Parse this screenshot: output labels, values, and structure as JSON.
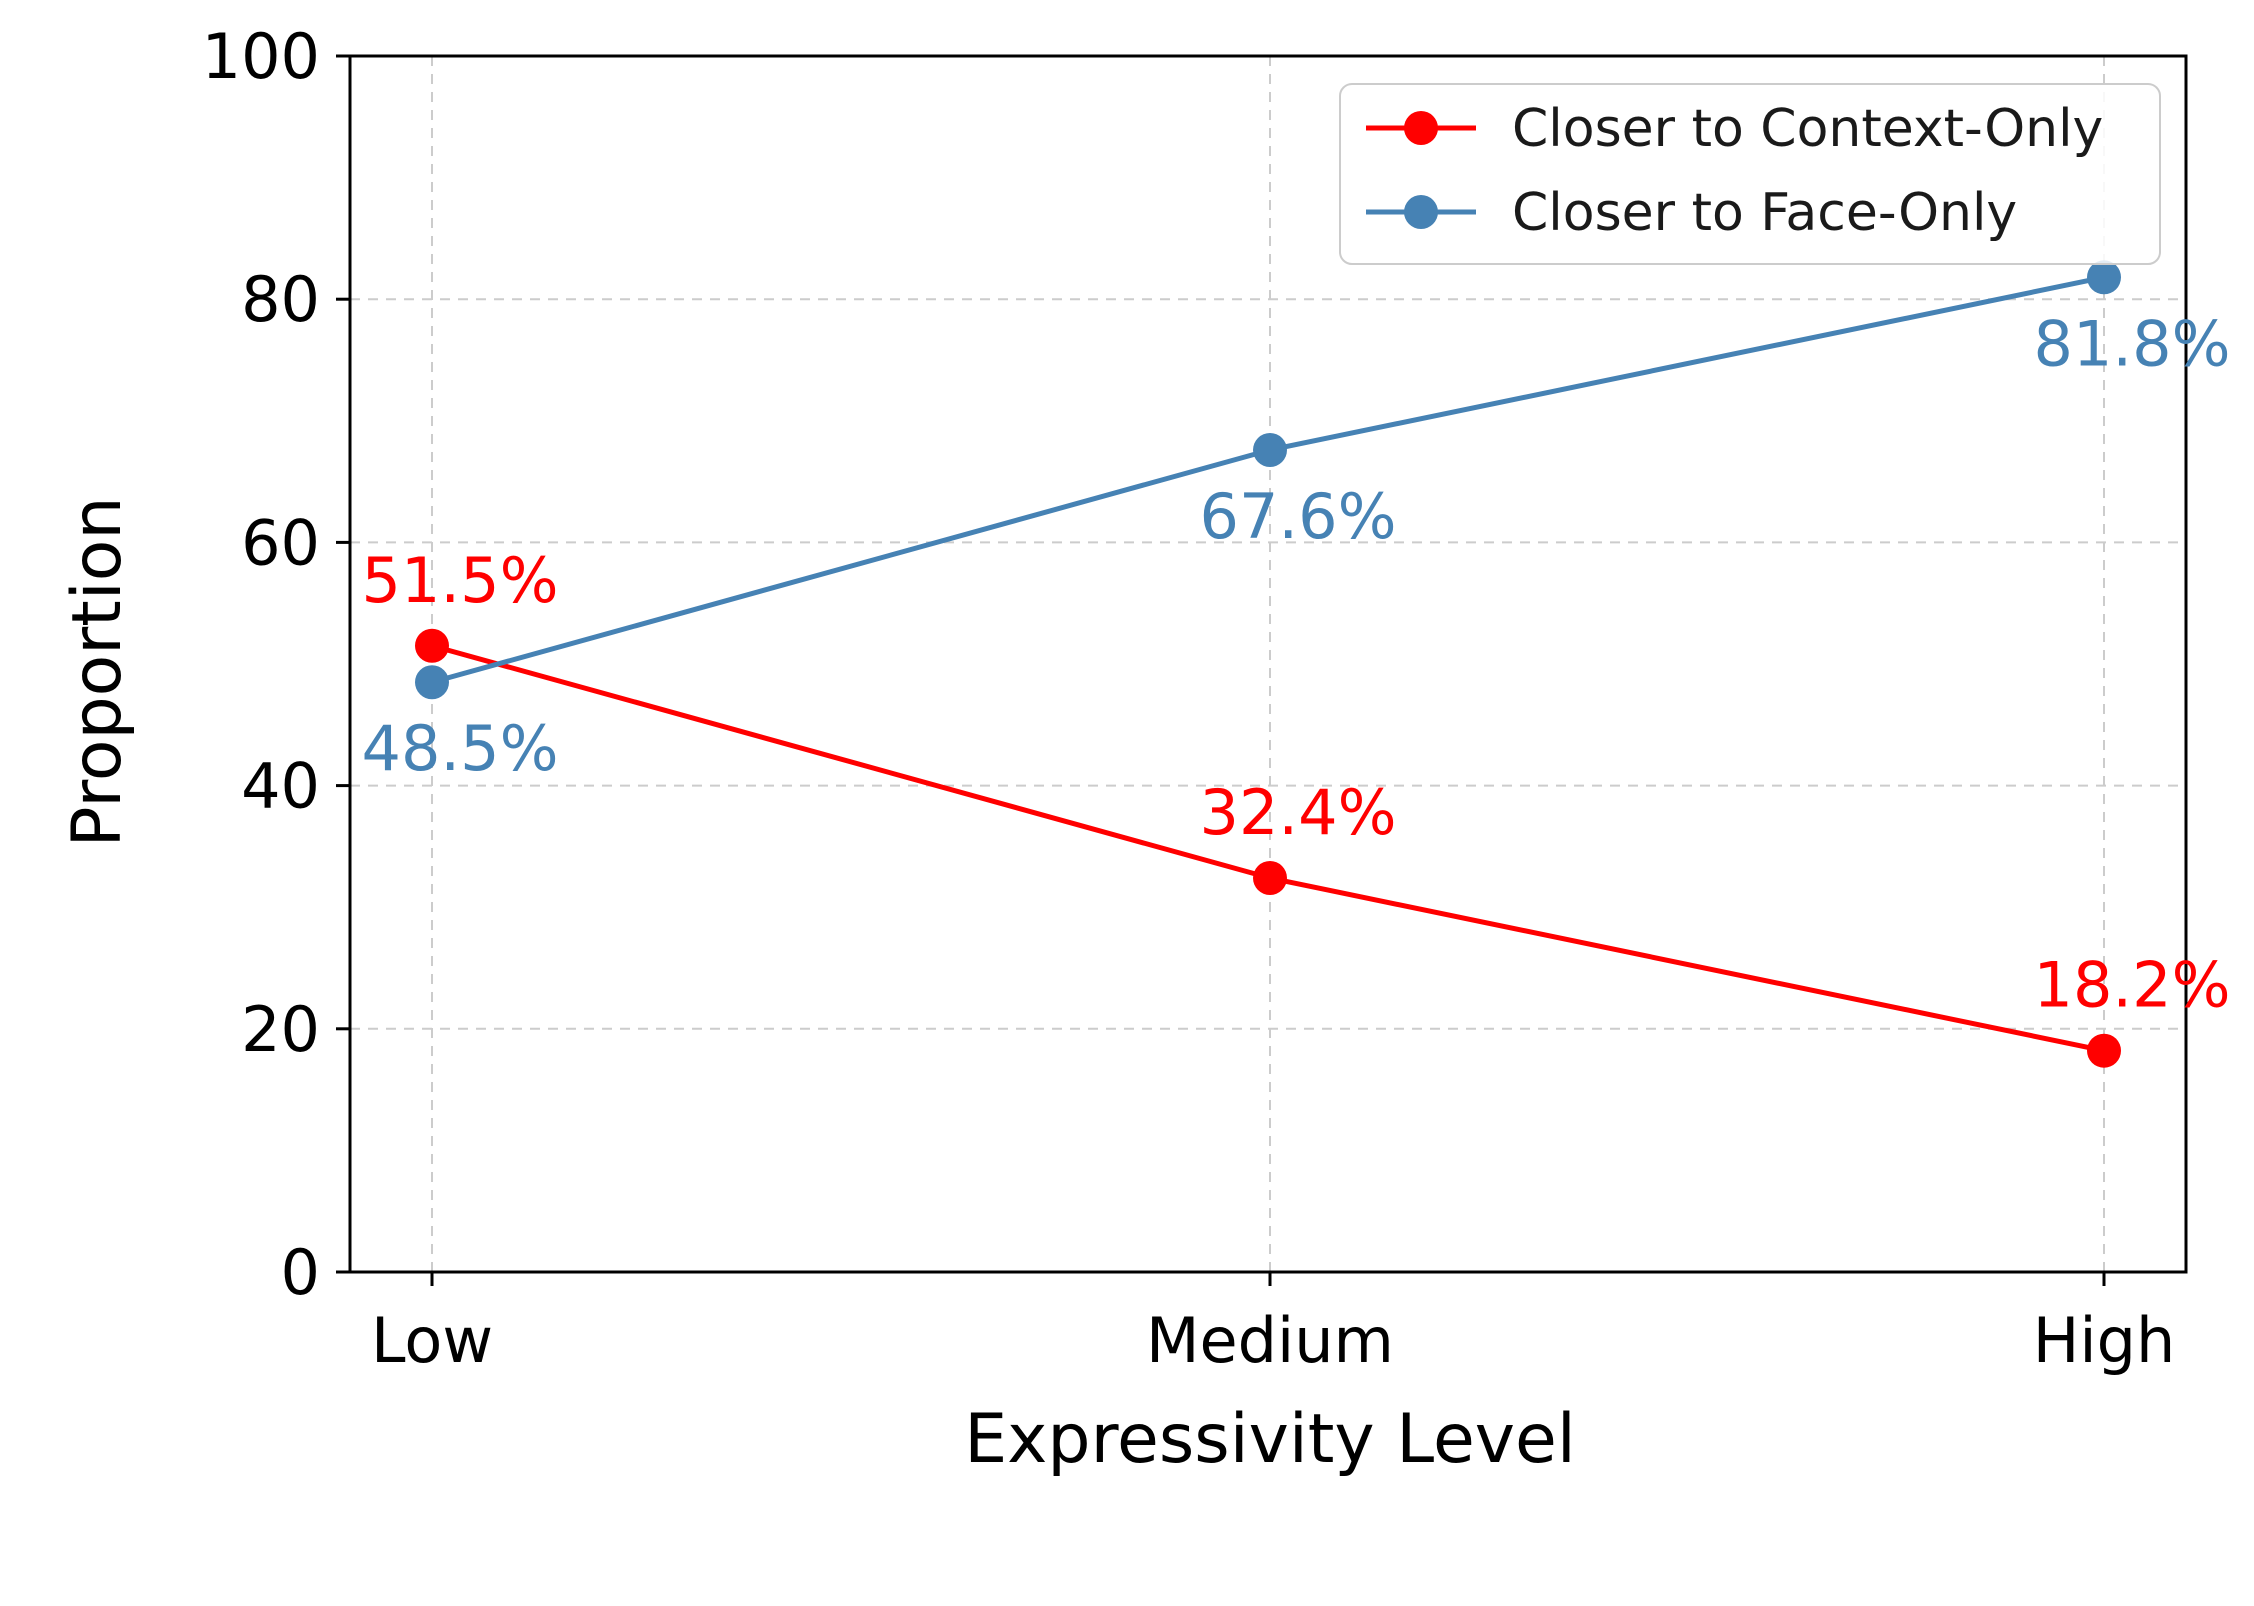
{
  "chart_data": {
    "type": "line",
    "title": "",
    "xlabel": "Expressivity Level",
    "ylabel": "Proportion",
    "categories": [
      "Low",
      "Medium",
      "High"
    ],
    "ylim": [
      0,
      100
    ],
    "yticks": [
      0,
      20,
      40,
      60,
      80,
      100
    ],
    "grid": true,
    "legend_position": "top-right",
    "series": [
      {
        "name": "Closer to Context-Only",
        "color": "#ff0000",
        "values": [
          51.5,
          32.4,
          18.2
        ],
        "labels": [
          "51.5%",
          "32.4%",
          "18.2%"
        ],
        "label_position": "above"
      },
      {
        "name": "Closer to Face-Only",
        "color": "#4682b4",
        "values": [
          48.5,
          67.6,
          81.8
        ],
        "labels": [
          "48.5%",
          "67.6%",
          "81.8%"
        ],
        "label_position": "below"
      }
    ]
  }
}
